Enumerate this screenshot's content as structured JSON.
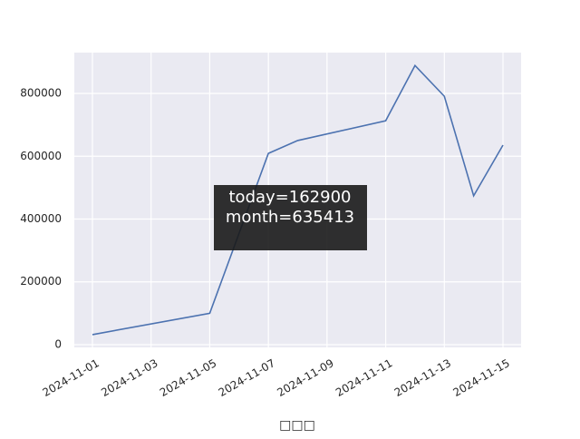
{
  "chart_data": {
    "type": "line",
    "x": [
      "2024-11-01",
      "2024-11-05",
      "2024-11-07",
      "2024-11-08",
      "2024-11-11",
      "2024-11-12",
      "2024-11-13",
      "2024-11-14",
      "2024-11-15"
    ],
    "series": [
      {
        "color": "#4c72b0",
        "values": [
          32000,
          100000,
          609000,
          650000,
          713000,
          889000,
          791000,
          474000,
          635413
        ]
      }
    ],
    "xlim": [
      "2024-11-01",
      "2024-11-15"
    ],
    "xticks": [
      "2024-11-01",
      "2024-11-03",
      "2024-11-05",
      "2024-11-07",
      "2024-11-09",
      "2024-11-11",
      "2024-11-13",
      "2024-11-15"
    ],
    "ylim": [
      -8700,
      930000
    ],
    "yticks": [
      0,
      200000,
      400000,
      600000,
      800000
    ],
    "xlabel": "□□□",
    "annotation": [
      "today=162900",
      "month=635413"
    ],
    "grid": true
  }
}
